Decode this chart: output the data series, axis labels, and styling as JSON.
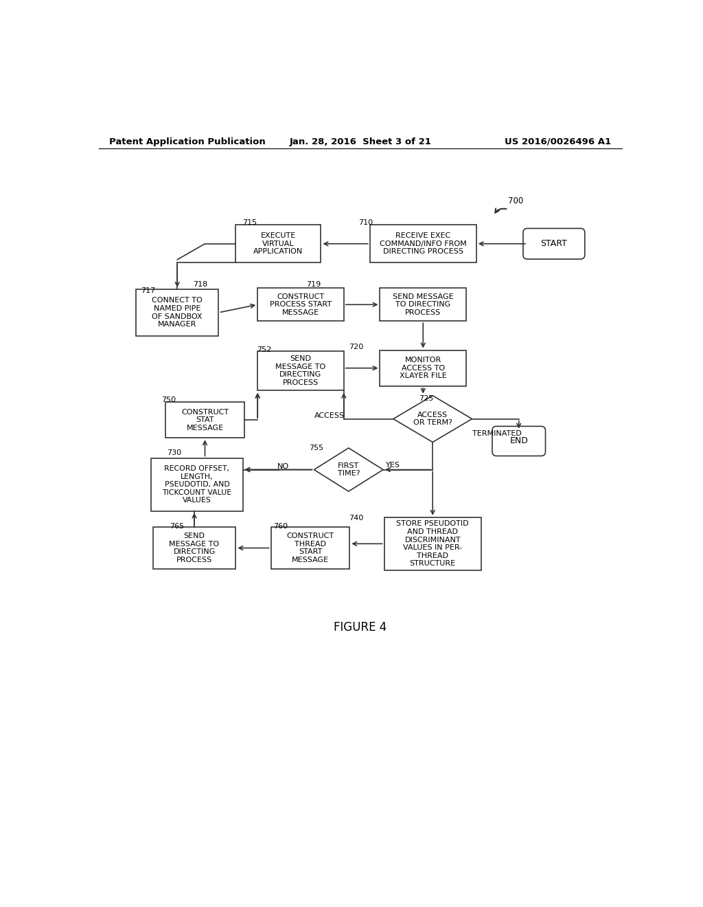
{
  "title_left": "Patent Application Publication",
  "title_center": "Jan. 28, 2016  Sheet 3 of 21",
  "title_right": "US 2016/0026496 A1",
  "figure_label": "FIGURE 4",
  "background_color": "#ffffff"
}
